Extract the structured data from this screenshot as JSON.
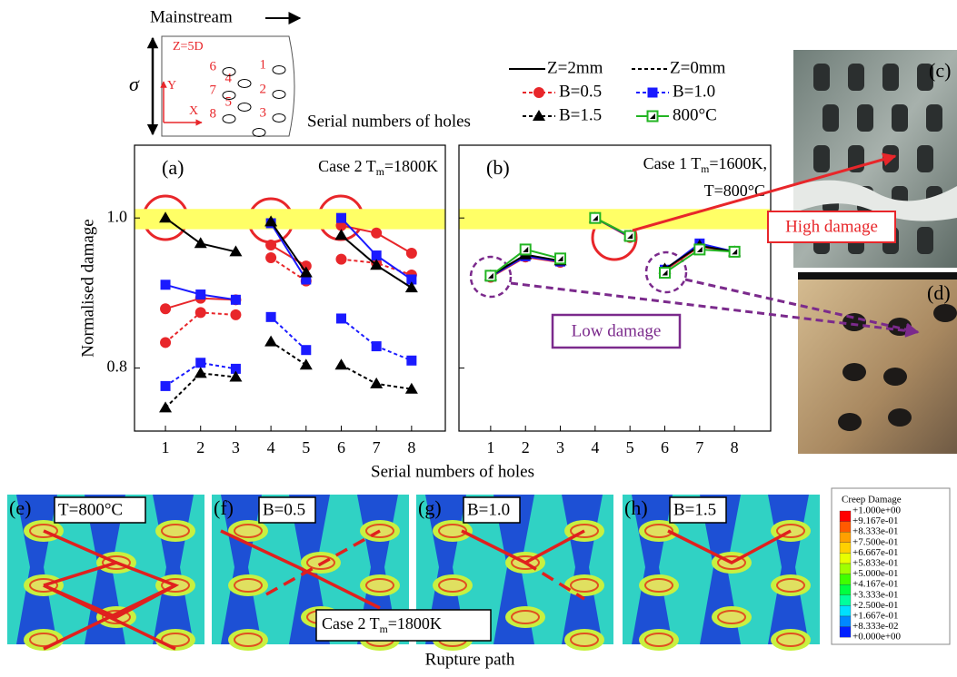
{
  "schematic": {
    "mainstream": "Mainstream",
    "sigma": "σ",
    "z": "Z=5D",
    "y_axis": "Y",
    "x_axis": "X",
    "holes": [
      "1",
      "2",
      "3",
      "4",
      "5",
      "6",
      "7",
      "8"
    ],
    "caption": "Serial numbers of holes"
  },
  "legend": {
    "line_styles": [
      {
        "label": "Z=2mm",
        "dash": false
      },
      {
        "label": "Z=0mm",
        "dash": true
      }
    ],
    "markers": [
      {
        "label": "B=0.5",
        "color": "#e8262a",
        "marker": "circle"
      },
      {
        "label": "B=1.0",
        "color": "#1a1aff",
        "marker": "square"
      },
      {
        "label": "B=1.5",
        "color": "#000000",
        "marker": "triangle"
      },
      {
        "label": "800°C",
        "color": "#22b422",
        "marker": "open-square"
      }
    ]
  },
  "chart_data": [
    {
      "type": "line",
      "panel": "(a)",
      "annotation": [
        "Case 2 T",
        "m",
        "=1800K"
      ],
      "ylabel": "Normalised damage",
      "xlabel": "Serial numbers of holes",
      "x": [
        1,
        2,
        3,
        null,
        4,
        5,
        null,
        6,
        7,
        8
      ],
      "xlim": [
        0.12,
        8.96
      ],
      "ylim": [
        0.716,
        1.097
      ],
      "xticks": [
        1,
        2,
        3,
        4,
        5,
        6,
        7,
        8
      ],
      "yticks": [
        0.8,
        {
          "value": 1,
          "label": "1.0"
        }
      ],
      "band": [
        0.985,
        1.012
      ],
      "band_color": "#ffff66",
      "series": [
        {
          "style": 0,
          "marker": 0,
          "values": [
            0.879,
            0.893,
            0.891,
            null,
            0.964,
            0.936,
            null,
            0.99,
            0.98,
            0.953
          ]
        },
        {
          "style": 1,
          "marker": 0,
          "values": [
            0.834,
            0.874,
            0.871,
            null,
            0.947,
            0.916,
            null,
            0.945,
            0.94,
            0.924
          ]
        },
        {
          "style": 0,
          "marker": 1,
          "values": [
            0.911,
            0.898,
            0.891,
            null,
            0.993,
            0.918,
            null,
            1.0,
            0.95,
            0.918
          ]
        },
        {
          "style": 1,
          "marker": 1,
          "values": [
            0.776,
            0.807,
            0.799,
            null,
            0.868,
            0.824,
            null,
            0.866,
            0.829,
            0.81
          ]
        },
        {
          "style": 0,
          "marker": 2,
          "values": [
            1.0,
            0.966,
            0.955,
            null,
            0.995,
            0.927,
            null,
            0.977,
            0.937,
            0.907
          ]
        },
        {
          "style": 1,
          "marker": 2,
          "values": [
            0.747,
            0.793,
            0.788,
            null,
            0.835,
            0.804,
            null,
            0.804,
            0.779,
            0.772
          ]
        }
      ]
    },
    {
      "type": "line",
      "panel": "(b)",
      "annotation": [
        "Case 1  T",
        "m",
        "=1600K,"
      ],
      "annotation_line2": "T=800°C",
      "x": [
        1,
        2,
        3,
        null,
        4,
        5,
        null,
        6,
        7,
        8
      ],
      "xlim": [
        0.09,
        9.04
      ],
      "ylim": [
        0.716,
        1.097
      ],
      "xticks": [
        1,
        2,
        3,
        4,
        5,
        6,
        7,
        8
      ],
      "yticks": [
        0.8,
        1
      ],
      "band": [
        0.985,
        1.012
      ],
      "band_color": "#ffff66",
      "series": [
        {
          "style": 0,
          "marker": 0,
          "values": [
            0.921,
            0.948,
            0.941,
            null,
            1.0,
            0.974,
            null,
            0.93,
            0.962,
            0.955
          ]
        },
        {
          "style": 0,
          "marker": 1,
          "values": [
            0.922,
            0.949,
            0.942,
            null,
            1.0,
            0.975,
            null,
            0.931,
            0.966,
            0.955
          ]
        },
        {
          "style": 0,
          "marker": 2,
          "values": [
            0.923,
            0.951,
            0.943,
            null,
            1.0,
            0.976,
            null,
            0.932,
            0.963,
            0.955
          ]
        },
        {
          "style": 0,
          "marker": 3,
          "values": [
            0.923,
            0.958,
            0.946,
            null,
            1.0,
            0.976,
            null,
            0.927,
            0.958,
            0.955
          ]
        }
      ]
    }
  ],
  "photos": {
    "c": "(c)",
    "d": "(d)",
    "high": "High damage",
    "low": "Low damage"
  },
  "contours": {
    "panels": [
      {
        "tag": "(e)",
        "label": "T=800°C"
      },
      {
        "tag": "(f)",
        "label": "B=0.5"
      },
      {
        "tag": "(g)",
        "label": "B=1.0"
      },
      {
        "tag": "(h)",
        "label": "B=1.5"
      }
    ],
    "case": [
      "Case 2    T",
      "m",
      "=1800K"
    ],
    "caption": "Rupture path"
  },
  "colorbar": {
    "title": "Creep Damage",
    "labels": [
      "+1.000e+00",
      "+9.167e-01",
      "+8.333e-01",
      "+7.500e-01",
      "+6.667e-01",
      "+5.833e-01",
      "+5.000e-01",
      "+4.167e-01",
      "+3.333e-01",
      "+2.500e-01",
      "+1.667e-01",
      "+8.333e-02",
      "+0.000e+00"
    ]
  }
}
